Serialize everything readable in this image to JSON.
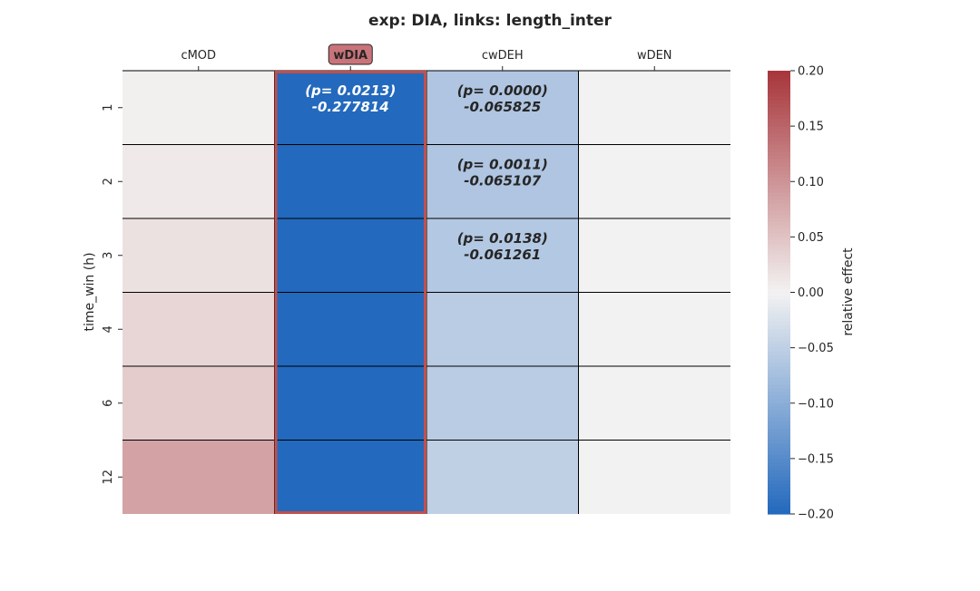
{
  "chart_data": {
    "type": "heatmap",
    "title": "exp: DIA, links: length_inter",
    "ylabel": "time_win (h)",
    "columns": [
      "cMOD",
      "wDIA",
      "cwDEH",
      "wDEN"
    ],
    "rows": [
      "1",
      "2",
      "3",
      "4",
      "6",
      "12"
    ],
    "highlighted_column": "wDIA",
    "values": [
      [
        0.003,
        -0.277814,
        -0.065825,
        0.0
      ],
      [
        0.01,
        -0.28,
        -0.065107,
        0.0
      ],
      [
        0.018,
        -0.28,
        -0.061261,
        0.0
      ],
      [
        0.03,
        -0.28,
        -0.055,
        0.0
      ],
      [
        0.04,
        -0.28,
        -0.055,
        0.0
      ],
      [
        0.085,
        -0.28,
        -0.05,
        0.0
      ]
    ],
    "annotations": [
      {
        "row": 0,
        "col": 1,
        "p_text": "(p= 0.0213)",
        "value_text": "-0.277814",
        "color": "#ffffff"
      },
      {
        "row": 0,
        "col": 2,
        "p_text": "(p= 0.0000)",
        "value_text": "-0.065825",
        "color": "#262626"
      },
      {
        "row": 1,
        "col": 2,
        "p_text": "(p= 0.0011)",
        "value_text": "-0.065107",
        "color": "#262626"
      },
      {
        "row": 2,
        "col": 2,
        "p_text": "(p= 0.0138)",
        "value_text": "-0.061261",
        "color": "#262626"
      }
    ],
    "colorbar": {
      "label": "relative effect",
      "vmin": -0.2,
      "vmax": 0.2,
      "ticks": [
        {
          "value": 0.2,
          "label": "0.20"
        },
        {
          "value": 0.15,
          "label": "0.15"
        },
        {
          "value": 0.1,
          "label": "0.10"
        },
        {
          "value": 0.05,
          "label": "0.05"
        },
        {
          "value": 0.0,
          "label": "0.00"
        },
        {
          "value": -0.05,
          "label": "−0.05"
        },
        {
          "value": -0.1,
          "label": "−0.10"
        },
        {
          "value": -0.15,
          "label": "−0.15"
        },
        {
          "value": -0.2,
          "label": "−0.20"
        }
      ],
      "colors": {
        "neg": "#2369bd",
        "mid": "#f3f2f2",
        "pos": "#a7353a"
      }
    },
    "highlight_color": "#c0504d",
    "highlight_label_bg": "#c9747a"
  }
}
